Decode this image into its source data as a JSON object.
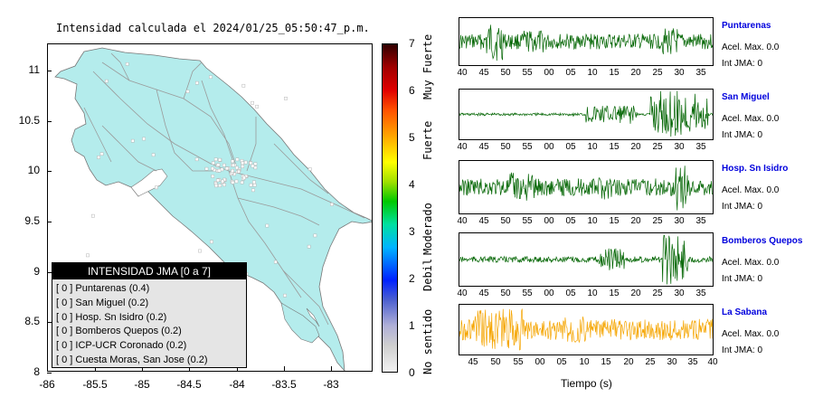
{
  "map": {
    "title": "Intensidad calculada el 2024/01/25_05:50:47_p.m.",
    "y_ticks": [
      "11",
      "10.5",
      "10",
      "9.5",
      "9",
      "8.5",
      "8"
    ],
    "x_ticks": [
      "-86",
      "-85.5",
      "-85",
      "-84.5",
      "-84",
      "-83.5",
      "-83"
    ],
    "land_color": "#b4ecec",
    "roads_color": "#9a9a9a"
  },
  "colorbar": {
    "levels": [
      "7",
      "6",
      "5",
      "4",
      "3",
      "2",
      "1",
      "0"
    ],
    "names": [
      "Muy Fuerte",
      "Fuerte",
      "Moderado",
      "Debil",
      "No sentido"
    ]
  },
  "legend": {
    "header": "INTENSIDAD JMA [0 a 7]",
    "items": [
      "[ 0 ]  Puntarenas (0.4)",
      "[ 0 ]  San Miguel (0.2)",
      "[ 0 ]  Hosp. Sn Isidro (0.2)",
      "[ 0 ]  Bomberos Quepos (0.2)",
      "[ 0 ]  ICP-UCR Coronado (0.2)",
      "[ 0 ]  Cuesta Moras, San Jose (0.2)"
    ]
  },
  "traces": [
    {
      "station": "Puntarenas",
      "accel": "Acel. Max. 0.0",
      "jma": "Int JMA: 0",
      "color": "#006400",
      "ticks": [
        "40",
        "45",
        "50",
        "55",
        "00",
        "05",
        "10",
        "15",
        "20",
        "25",
        "30",
        "35"
      ]
    },
    {
      "station": "San Miguel",
      "accel": "Acel. Max. 0.0",
      "jma": "Int JMA: 0",
      "color": "#006400",
      "ticks": [
        "40",
        "45",
        "50",
        "55",
        "00",
        "05",
        "10",
        "15",
        "20",
        "25",
        "30",
        "35"
      ]
    },
    {
      "station": "Hosp. Sn Isidro",
      "accel": "Acel. Max. 0.0",
      "jma": "Int JMA: 0",
      "color": "#006400",
      "ticks": [
        "40",
        "45",
        "50",
        "55",
        "00",
        "05",
        "10",
        "15",
        "20",
        "25",
        "30",
        "35"
      ]
    },
    {
      "station": "Bomberos Quepos",
      "accel": "Acel. Max. 0.0",
      "jma": "Int JMA: 0",
      "color": "#006400",
      "ticks": [
        "40",
        "45",
        "50",
        "55",
        "00",
        "05",
        "10",
        "15",
        "20",
        "25",
        "30",
        "35"
      ]
    },
    {
      "station": "La Sabana",
      "accel": "Acel. Max. 0.0",
      "jma": "Int JMA: 0",
      "color": "#f5a500",
      "ticks": [
        "45",
        "50",
        "55",
        "00",
        "05",
        "10",
        "15",
        "20",
        "25",
        "30",
        "35",
        "40"
      ]
    }
  ],
  "time_axis_label": "Tiempo (s)"
}
